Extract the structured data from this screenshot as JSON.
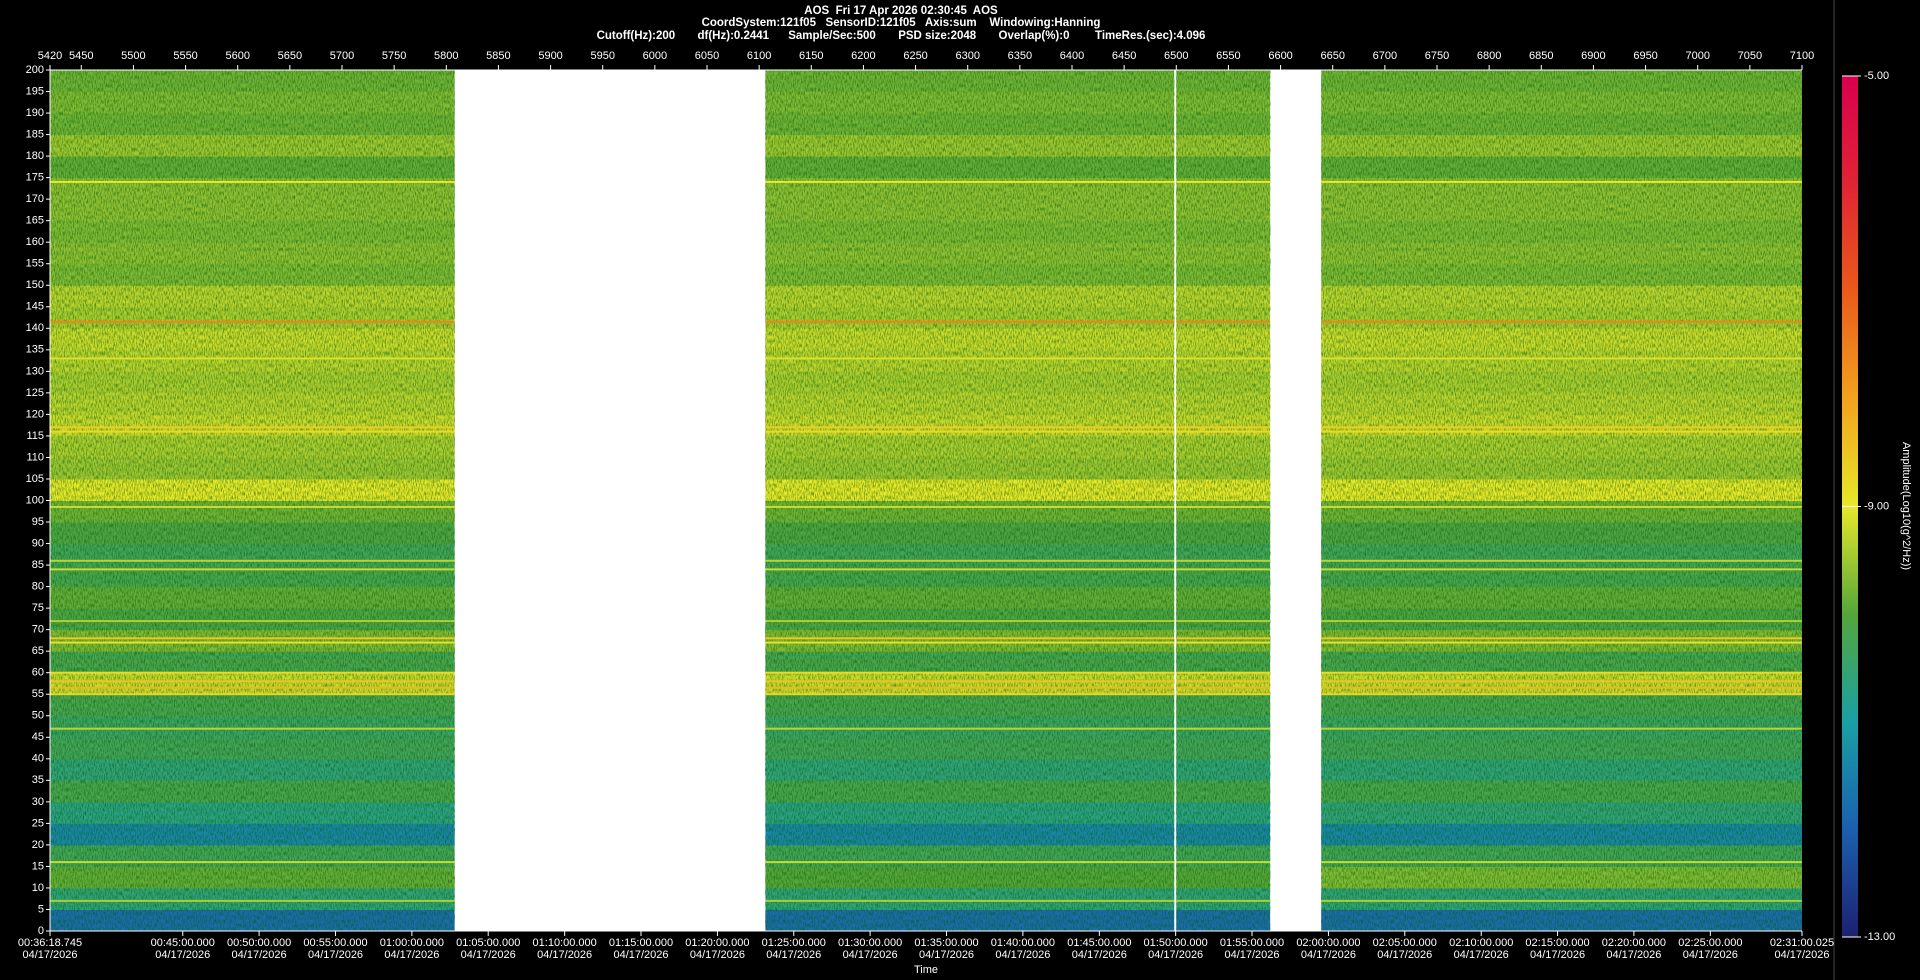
{
  "chart_data": {
    "type": "heatmap",
    "title": "AOS  Fri 17 Apr 2026 02:30:45  AOS",
    "subtitle": [
      "CoordSystem:121f05   SensorID:121f05   Axis:sum    Windowing:Hanning",
      "Cutoff(Hz):200       df(Hz):0.2441      Sample/Sec:500       PSD size:2048       Overlap(%):0        TimeRes.(sec):4.096"
    ],
    "xlabel": "Time",
    "zlabel": "Amplitude(Log10(g^2/Hz))",
    "xlim": [
      5420,
      7100
    ],
    "x2ticks": [
      5420,
      5450,
      5500,
      5550,
      5600,
      5650,
      5700,
      5750,
      5800,
      5850,
      5900,
      5950,
      6000,
      6050,
      6100,
      6150,
      6200,
      6250,
      6300,
      6350,
      6400,
      6450,
      6500,
      6550,
      6600,
      6650,
      6700,
      6750,
      6800,
      6850,
      6900,
      6950,
      7000,
      7050,
      7100
    ],
    "xticks": [
      {
        "value": 5420,
        "label": "00:36:18.745"
      },
      {
        "value": 5547.3,
        "label": "00:45:00.000"
      },
      {
        "value": 5620.5,
        "label": "00:50:00.000"
      },
      {
        "value": 5693.8,
        "label": "00:55:00.000"
      },
      {
        "value": 5767,
        "label": "01:00:00.000"
      },
      {
        "value": 5840.2,
        "label": "01:05:00.000"
      },
      {
        "value": 5913.5,
        "label": "01:10:00.000"
      },
      {
        "value": 5986.7,
        "label": "01:15:00.000"
      },
      {
        "value": 6060,
        "label": "01:20:00.000"
      },
      {
        "value": 6133.2,
        "label": "01:25:00.000"
      },
      {
        "value": 6206.4,
        "label": "01:30:00.000"
      },
      {
        "value": 6279.7,
        "label": "01:35:00.000"
      },
      {
        "value": 6352.9,
        "label": "01:40:00.000"
      },
      {
        "value": 6426.2,
        "label": "01:45:00.000"
      },
      {
        "value": 6499.4,
        "label": "01:50:00.000"
      },
      {
        "value": 6572.6,
        "label": "01:55:00.000"
      },
      {
        "value": 6645.9,
        "label": "02:00:00.000"
      },
      {
        "value": 6719.1,
        "label": "02:05:00.000"
      },
      {
        "value": 6792.4,
        "label": "02:10:00.000"
      },
      {
        "value": 6865.6,
        "label": "02:15:00.000"
      },
      {
        "value": 6938.8,
        "label": "02:20:00.000"
      },
      {
        "value": 7012.1,
        "label": "02:25:00.000"
      },
      {
        "value": 7100,
        "label": "02:31:00.025"
      }
    ],
    "x_dates": [
      "04/17/2026",
      "04/17/2026",
      "04/17/2026",
      "04/17/2026",
      "04/17/2026",
      "04/17/2026",
      "04/17/2026",
      "04/17/2026",
      "04/17/2026",
      "04/17/2026",
      "04/17/2026",
      "04/17/2026",
      "04/17/2026",
      "04/17/2026",
      "04/17/2026",
      "04/17/2026",
      "04/17/2026",
      "04/17/2026",
      "04/17/2026",
      "04/17/2026",
      "04/17/2026",
      "04/17/2026",
      "04/17/2026"
    ],
    "ylim": [
      0,
      200
    ],
    "yticks": [
      0,
      5,
      10,
      15,
      20,
      25,
      30,
      35,
      40,
      45,
      50,
      55,
      60,
      65,
      70,
      75,
      80,
      85,
      90,
      95,
      100,
      105,
      110,
      115,
      120,
      125,
      130,
      135,
      140,
      145,
      150,
      155,
      160,
      165,
      170,
      175,
      180,
      185,
      190,
      195,
      200
    ],
    "y_bins": [
      0,
      5,
      10,
      15,
      20,
      25,
      30,
      35,
      40,
      45,
      50,
      55,
      60,
      65,
      70,
      75,
      80,
      85,
      90,
      95,
      100,
      105,
      110,
      115,
      120,
      125,
      130,
      135,
      140,
      145,
      150,
      155,
      160,
      165,
      170,
      175,
      180,
      185,
      190,
      195,
      200
    ],
    "zlim": [
      -13,
      -5
    ],
    "zticks": [
      {
        "value": -5,
        "label": "-5.00"
      },
      {
        "value": -9,
        "label": "-9.00"
      },
      {
        "value": -13,
        "label": "-13.00"
      }
    ],
    "colorscale": [
      "#1c2170",
      "#1b5fae",
      "#19a0a4",
      "#55a63a",
      "#e8e82a",
      "#f2a21e",
      "#ea5a1a",
      "#e02434",
      "#d8004e"
    ],
    "segments": [
      {
        "x_range": [
          5420,
          5808
        ],
        "values": [
          -11.8,
          -10.6,
          -9.9,
          -10.3,
          -11.4,
          -10.7,
          -10.2,
          -10.6,
          -10.3,
          -10.4,
          -10.2,
          -9.2,
          -10.2,
          -9.7,
          -10.1,
          -9.9,
          -10.2,
          -10.3,
          -10.1,
          -9.8,
          -9.0,
          -9.5,
          -9.4,
          -9.2,
          -9.3,
          -9.4,
          -9.3,
          -9.2,
          -9.4,
          -9.3,
          -9.7,
          -9.6,
          -9.7,
          -9.6,
          -9.6,
          -9.9,
          -9.5,
          -9.8,
          -9.7,
          -9.8
        ]
      },
      {
        "x_range": [
          6106,
          6498
        ],
        "values": [
          -11.8,
          -10.6,
          -10.0,
          -10.3,
          -11.4,
          -10.7,
          -10.2,
          -10.6,
          -10.3,
          -10.4,
          -10.2,
          -9.2,
          -10.2,
          -9.7,
          -10.1,
          -9.9,
          -10.2,
          -10.3,
          -10.1,
          -9.8,
          -9.0,
          -9.5,
          -9.4,
          -9.2,
          -9.3,
          -9.4,
          -9.3,
          -9.2,
          -9.4,
          -9.3,
          -9.7,
          -9.6,
          -9.7,
          -9.6,
          -9.6,
          -9.9,
          -9.5,
          -9.8,
          -9.7,
          -9.8
        ]
      },
      {
        "x_range": [
          6500,
          6590
        ],
        "values": [
          -11.8,
          -10.6,
          -10.0,
          -10.3,
          -11.4,
          -10.7,
          -10.2,
          -10.6,
          -10.3,
          -10.4,
          -10.2,
          -9.2,
          -10.2,
          -9.7,
          -10.1,
          -9.9,
          -10.2,
          -10.3,
          -10.1,
          -9.8,
          -9.0,
          -9.5,
          -9.4,
          -9.2,
          -9.3,
          -9.4,
          -9.3,
          -9.2,
          -9.4,
          -9.3,
          -9.7,
          -9.6,
          -9.7,
          -9.6,
          -9.6,
          -9.9,
          -9.5,
          -9.8,
          -9.7,
          -9.8
        ]
      },
      {
        "x_range": [
          6639,
          7100
        ],
        "values": [
          -11.8,
          -10.6,
          -9.7,
          -10.3,
          -11.4,
          -10.6,
          -10.2,
          -10.6,
          -10.3,
          -10.4,
          -10.2,
          -9.2,
          -10.2,
          -9.7,
          -10.1,
          -9.9,
          -10.2,
          -10.3,
          -10.1,
          -9.8,
          -9.0,
          -9.5,
          -9.4,
          -9.2,
          -9.3,
          -9.4,
          -9.3,
          -9.2,
          -9.4,
          -9.3,
          -9.7,
          -9.6,
          -9.7,
          -9.6,
          -9.6,
          -9.9,
          -9.5,
          -9.8,
          -9.7,
          -9.8
        ]
      }
    ],
    "lines": {
      "freqs": [
        174,
        141.5,
        133,
        117,
        116,
        98.5,
        86,
        84,
        72,
        68,
        67,
        60,
        58,
        56.5,
        55,
        47,
        16,
        7
      ],
      "values": [
        -9.0,
        -7.6,
        -9.1,
        -8.6,
        -8.8,
        -9.2,
        -9.3,
        -9.2,
        -9.4,
        -8.5,
        -8.9,
        -8.8,
        -8.5,
        -8.3,
        -8.7,
        -9.3,
        -9.2,
        -9.4
      ]
    }
  }
}
